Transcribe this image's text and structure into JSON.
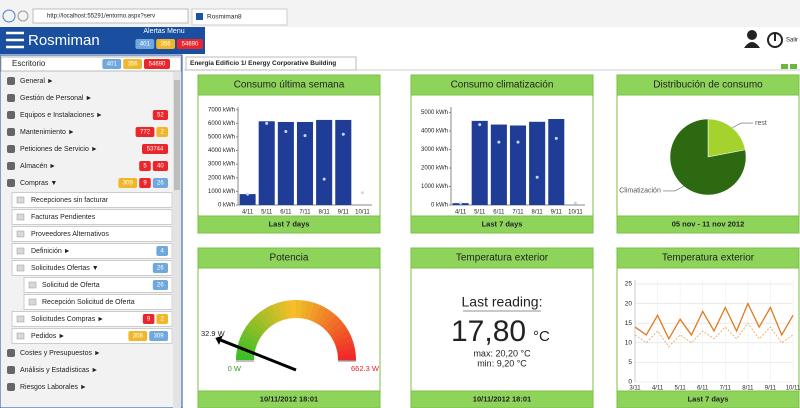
{
  "browser": {
    "url": "http://localhost:55291/entorno.aspx?serv",
    "tab": "Rosmiman8"
  },
  "header": {
    "app": "Rosmiman",
    "alerts_title": "Alertas Menu",
    "logout": "Salir",
    "badges": [
      {
        "text": "401",
        "color": "#6fa8dc"
      },
      {
        "text": "356",
        "color": "#f1b72a"
      },
      {
        "text": "54690",
        "color": "#e8262b"
      }
    ]
  },
  "sidebar": {
    "title": "Escritorio",
    "badges": [
      {
        "text": "401",
        "color": "#6fa8dc"
      },
      {
        "text": "356",
        "color": "#f1b72a"
      },
      {
        "text": "54690",
        "color": "#e8262b"
      }
    ],
    "items": [
      {
        "label": "General ►",
        "badges": []
      },
      {
        "label": "Gestión de Personal ►",
        "badges": []
      },
      {
        "label": "Equipos e Instalaciones ►",
        "badges": [
          {
            "text": "52",
            "color": "#e8262b"
          }
        ]
      },
      {
        "label": "Mantenimiento ►",
        "badges": [
          {
            "text": "772",
            "color": "#e8262b"
          },
          {
            "text": "2",
            "color": "#f1b72a"
          }
        ]
      },
      {
        "label": "Peticiones de Servicio ►",
        "badges": [
          {
            "text": "53744",
            "color": "#e8262b"
          }
        ]
      },
      {
        "label": "Almacén ►",
        "badges": [
          {
            "text": "5",
            "color": "#e8262b"
          },
          {
            "text": "40",
            "color": "#e8262b"
          }
        ]
      },
      {
        "label": "Compras ▼",
        "badges": [
          {
            "text": "309",
            "color": "#f1b72a"
          },
          {
            "text": "9",
            "color": "#e8262b"
          },
          {
            "text": "26",
            "color": "#6fa8dc"
          }
        ],
        "children": [
          {
            "label": "Recepciones sin facturar",
            "badges": []
          },
          {
            "label": "Facturas Pendientes",
            "badges": []
          },
          {
            "label": "Proveedores Alternativos",
            "badges": []
          },
          {
            "label": "Definición ►",
            "badges": [
              {
                "text": "4",
                "color": "#6fa8dc"
              }
            ]
          },
          {
            "label": "Solicitudes Ofertas ▼",
            "badges": [
              {
                "text": "26",
                "color": "#6fa8dc"
              }
            ],
            "children": [
              {
                "label": "Solicitud de Oferta",
                "badges": [
                  {
                    "text": "26",
                    "color": "#6fa8dc"
                  }
                ]
              },
              {
                "label": "Recepción Solicitud de Oferta",
                "badges": []
              }
            ]
          },
          {
            "label": "Solicitudes Compras ►",
            "badges": [
              {
                "text": "9",
                "color": "#e8262b"
              },
              {
                "text": "2",
                "color": "#f1b72a"
              }
            ]
          },
          {
            "label": "Pedidos ►",
            "badges": [
              {
                "text": "308",
                "color": "#f1b72a"
              },
              {
                "text": "309",
                "color": "#6fa8dc"
              }
            ]
          }
        ]
      },
      {
        "label": "Costes y Presupuestos ►",
        "badges": []
      },
      {
        "label": "Análisis y Estadísticas ►",
        "badges": []
      },
      {
        "label": "Riesgos Laborales ►",
        "badges": []
      }
    ]
  },
  "tab": "Energía Edificio 1/ Energy Corporative Building",
  "reading": {
    "title": "Temperatura exterior",
    "heading": "Last reading:",
    "value": "17,80",
    "unit": "°C",
    "max": "max: 20,20 °C",
    "min": "min: 9,20 °C",
    "footer": "10/11/2012 18:01"
  },
  "chart_data": [
    {
      "type": "bar",
      "title": "Consumo última semana",
      "footer": "Last 7 days",
      "categories": [
        "4/11",
        "5/11",
        "6/11",
        "7/11",
        "8/11",
        "9/11",
        "10/11"
      ],
      "series": [
        {
          "marker": "bar",
          "color": "#1f3c96",
          "values": [
            800,
            6150,
            6100,
            6100,
            6250,
            6250,
            0
          ]
        },
        {
          "marker": "dot",
          "color": "#c8d8f4",
          "values": [
            800,
            6000,
            5400,
            5100,
            1900,
            5200,
            900
          ]
        }
      ],
      "ylim": [
        0,
        7200
      ],
      "yticks": [
        {
          "value": 0,
          "label": "0 kWh"
        },
        {
          "value": 1000,
          "label": "1000 kWh"
        },
        {
          "value": 2000,
          "label": "2000 kWh"
        },
        {
          "value": 3000,
          "label": "3000 kWh"
        },
        {
          "value": 4000,
          "label": "4000 kWh"
        },
        {
          "value": 5000,
          "label": "5000 kWh"
        },
        {
          "value": 6000,
          "label": "6000 kWh"
        },
        {
          "value": 7000,
          "label": "7000 kWh"
        }
      ]
    },
    {
      "type": "bar",
      "title": "Consumo climatización",
      "footer": "Last 7 days",
      "categories": [
        "4/11",
        "5/11",
        "6/11",
        "7/11",
        "8/11",
        "9/11",
        "10/11"
      ],
      "series": [
        {
          "marker": "bar",
          "color": "#1f3c96",
          "values": [
            100,
            4550,
            4350,
            4300,
            4500,
            4650,
            0
          ]
        },
        {
          "marker": "dot",
          "color": "#c8d8f4",
          "values": [
            100,
            4350,
            3400,
            3400,
            1500,
            3600,
            100
          ]
        }
      ],
      "ylim": [
        0,
        5300
      ],
      "yticks": [
        {
          "value": 0,
          "label": "0 kWh"
        },
        {
          "value": 1000,
          "label": "1000 kWh"
        },
        {
          "value": 2000,
          "label": "2000 kWh"
        },
        {
          "value": 3000,
          "label": "3000 kWh"
        },
        {
          "value": 4000,
          "label": "4000 kWh"
        },
        {
          "value": 5000,
          "label": "5000 kWh"
        }
      ]
    },
    {
      "type": "pie",
      "title": "Distribución de consumo",
      "footer": "05 nov - 11 nov 2012",
      "categories": [
        "rest",
        "Climatización"
      ],
      "values": [
        22,
        78
      ],
      "colors": [
        "#a5d22c",
        "#2c6910"
      ]
    },
    {
      "type": "gauge",
      "title": "Potencia",
      "footer": "10/11/2012 18:01",
      "value": 32.9,
      "value_label": "32.9 W",
      "min": 0,
      "min_label": "0 W",
      "max": 662.3,
      "max_label": "662.3 W"
    },
    {
      "type": "line",
      "title": "Temperatura exterior",
      "footer": "Last 7 days",
      "categories": [
        "3/11",
        null,
        "4/11",
        null,
        "5/11",
        null,
        "6/11",
        null,
        "7/11",
        null,
        "8/11",
        null,
        "9/11",
        null,
        "10/11"
      ],
      "series": [
        {
          "color": "#e07a1f",
          "dashed": false,
          "values": [
            14,
            12,
            17,
            11,
            16,
            12,
            18,
            13,
            19,
            13,
            20,
            14,
            19,
            12,
            17
          ]
        },
        {
          "color": "#f0a860",
          "dashed": true,
          "values": [
            12,
            10,
            13,
            9,
            12,
            10,
            13,
            11,
            14,
            11,
            15,
            11,
            14,
            10,
            12
          ]
        }
      ],
      "ylim": [
        0,
        26
      ],
      "yticks": [
        0,
        5,
        10,
        15,
        20,
        25
      ],
      "grid": true
    }
  ]
}
